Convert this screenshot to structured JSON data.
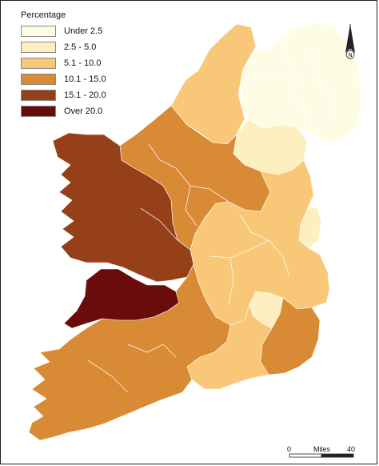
{
  "legend": {
    "title": "Percentage",
    "items": [
      {
        "label": "Under 2.5",
        "color": "#fffce6"
      },
      {
        "label": "2.5 - 5.0",
        "color": "#fdefbf"
      },
      {
        "label": "5.1 - 10.0",
        "color": "#f8c878"
      },
      {
        "label": "10.1 - 15.0",
        "color": "#d98a35"
      },
      {
        "label": "15.1 - 20.0",
        "color": "#964019"
      },
      {
        "label": "Over  20.0",
        "color": "#6b0c0c"
      }
    ]
  },
  "north_arrow": {
    "letter": "N"
  },
  "scale_bar": {
    "start": "0",
    "unit": "Miles",
    "end": "40"
  }
}
